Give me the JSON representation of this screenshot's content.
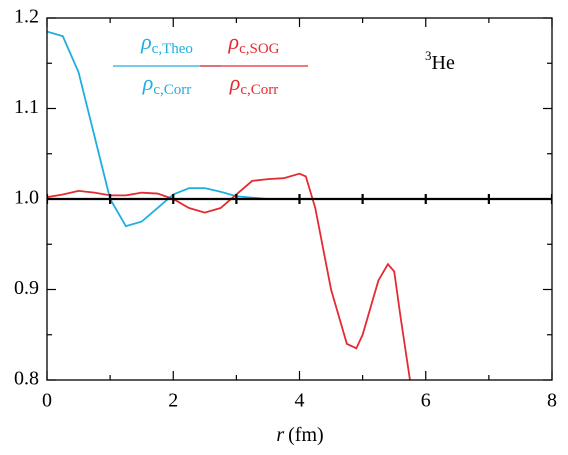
{
  "chart_data": {
    "type": "line",
    "xlim": [
      0,
      8
    ],
    "xticks": [
      0,
      2,
      4,
      6,
      8
    ],
    "xminorticks": [
      1,
      3,
      5,
      7
    ],
    "ylim": [
      0.8,
      1.2
    ],
    "yticks": [
      0.8,
      0.9,
      {
        "value": 1,
        "label": "1.0"
      },
      1.1,
      1.2
    ],
    "yminorticks": [
      0.85,
      0.95,
      1.05,
      1.15
    ],
    "xlabel": [
      "r",
      "(fm)"
    ],
    "annotation": [
      "3",
      "He"
    ],
    "series": [
      {
        "label": {
          "num": [
            "ρ",
            "c,Theo"
          ],
          "den": [
            "ρ",
            "c,Corr"
          ]
        },
        "color": "#1eaee0",
        "x": [
          0,
          0.25,
          0.5,
          0.75,
          1.0,
          1.25,
          1.5,
          1.75,
          2.0,
          2.25,
          2.5,
          2.75,
          3.0,
          3.5,
          4,
          5,
          6,
          7,
          8
        ],
        "values": [
          1.185,
          1.18,
          1.14,
          1.07,
          1.0,
          0.97,
          0.975,
          0.99,
          1.005,
          1.012,
          1.012,
          1.008,
          1.003,
          1.0,
          1.0,
          1.0,
          1.0,
          1.0,
          1.0
        ]
      },
      {
        "label": {
          "num": [
            "ρ",
            "c,SOG"
          ],
          "den": [
            "ρ",
            "c,Corr"
          ]
        },
        "color": "#e42a32",
        "x": [
          0,
          0.25,
          0.5,
          0.75,
          1.0,
          1.25,
          1.5,
          1.75,
          2.0,
          2.25,
          2.5,
          2.75,
          3.0,
          3.25,
          3.5,
          3.75,
          4.0,
          4.1,
          4.25,
          4.5,
          4.75,
          4.9,
          5.0,
          5.25,
          5.4,
          5.5,
          5.6,
          5.75
        ],
        "values": [
          1.002,
          1.005,
          1.009,
          1.007,
          1.004,
          1.004,
          1.007,
          1.006,
          1.0,
          0.99,
          0.985,
          0.99,
          1.005,
          1.02,
          1.022,
          1.023,
          1.028,
          1.025,
          0.99,
          0.9,
          0.84,
          0.835,
          0.85,
          0.91,
          0.928,
          0.92,
          0.87,
          0.8
        ]
      },
      {
        "color": "#000000",
        "x": [
          0,
          1,
          2,
          3,
          4,
          5,
          6,
          7,
          8
        ],
        "values": [
          1,
          1,
          1,
          1,
          1,
          1,
          1,
          1,
          1
        ],
        "markers": true
      }
    ]
  }
}
